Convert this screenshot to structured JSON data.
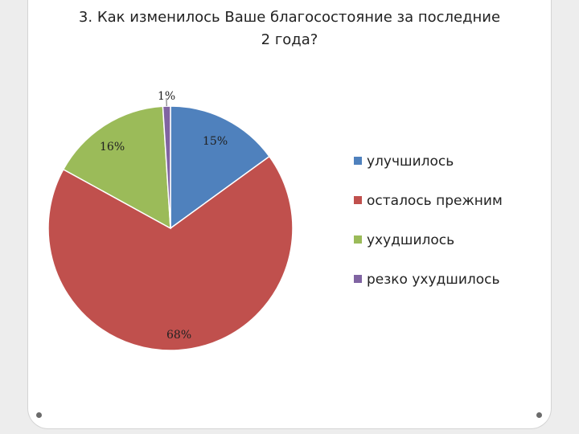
{
  "slide": {
    "title_line1": "3. Как изменилось Ваше благосостояние за последние",
    "title_line2": "2 года?"
  },
  "chart_data": {
    "type": "pie",
    "title": "3. Как изменилось Ваше благосостояние за последние 2 года?",
    "legend_position": "right",
    "slices": [
      {
        "name": "улучшилось",
        "value": 15,
        "label": "15%",
        "color": "#4f81bd"
      },
      {
        "name": "осталось прежним",
        "value": 68,
        "label": "68%",
        "color": "#c0504d"
      },
      {
        "name": "ухудшилось",
        "value": 16,
        "label": "16%",
        "color": "#9bbb59"
      },
      {
        "name": "резко ухудшилось",
        "value": 1,
        "label": "1%",
        "color": "#8064a2"
      }
    ]
  }
}
